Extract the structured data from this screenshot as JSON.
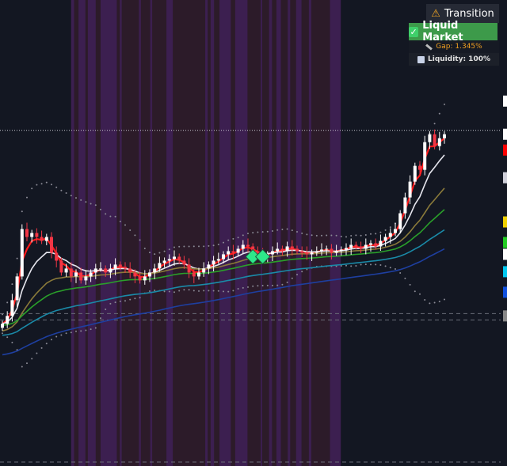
{
  "status_panel": {
    "transition_label": "Transition",
    "transition_icon": "warning-icon",
    "market_label": "Liquid Market",
    "market_icon": "checkmark-icon",
    "gap_label": "Gap: 1.345%",
    "liquidity_label": "Liquidity: 100%",
    "colors": {
      "transition_bg": "#262a35",
      "market_bg": "#3d9a4a",
      "gap_text": "#f0a020"
    }
  },
  "chart_data": {
    "type": "candlestick",
    "title": "",
    "ylim": [
      81,
      140
    ],
    "grid": false,
    "colors": {
      "up": "#ffffff",
      "down": "#f23645",
      "background": "#131722",
      "zone_dark": "#2c1b29",
      "zone_light": "#3c1f50"
    },
    "closes": [
      99,
      100,
      102,
      105,
      111,
      110,
      110.5,
      110,
      109.5,
      110,
      108,
      107,
      105.5,
      106,
      105,
      105.5,
      104.5,
      105,
      105.5,
      106,
      106,
      105.5,
      106,
      106.5,
      106.2,
      106,
      105.5,
      105,
      104.5,
      105,
      105.5,
      106,
      106.7,
      107,
      107.2,
      107.5,
      107,
      106.5,
      105.5,
      105,
      105.5,
      106,
      106.5,
      107,
      107.2,
      107.8,
      108.2,
      108,
      108.5,
      109,
      108.8,
      108.2,
      107.8,
      107.5,
      107.8,
      108.2,
      108.5,
      108.2,
      108.8,
      108.5,
      108.2,
      108,
      107.8,
      108,
      108.2,
      108.4,
      108.5,
      108,
      108.2,
      108.4,
      108.6,
      109,
      108.8,
      108.5,
      109,
      109.2,
      108.8,
      109.5,
      110,
      110.5,
      111,
      113,
      115,
      117,
      119,
      118.5,
      122,
      123,
      121.5,
      122.5,
      123
    ],
    "indicators": [
      {
        "type": "ema",
        "period": 3,
        "color": "#ff1a1a"
      },
      {
        "type": "ema",
        "period": 8,
        "color": "#e6e6ee",
        "seed": 99
      },
      {
        "type": "ema",
        "period": 20,
        "color": "#8a7a3a",
        "seed": 98
      },
      {
        "type": "ema",
        "period": 35,
        "color": "#2aa02a",
        "seed": 98.8
      },
      {
        "type": "ema",
        "period": 60,
        "color": "#1a8aa8",
        "seed": 97.5
      },
      {
        "type": "ema",
        "period": 90,
        "color": "#1e3fa0",
        "seed": 95
      }
    ],
    "bollinger": {
      "period": 20,
      "stddev": 2,
      "color": "#8a8a95"
    },
    "signals": [
      {
        "index": 51,
        "price": 107.5,
        "color": "#2ee88a"
      },
      {
        "index": 53,
        "price": 107.5,
        "color": "#2ee88a"
      }
    ],
    "last_price_line": 123.5,
    "levels": [
      100.3,
      99.5,
      81.5
    ],
    "zones_light": [
      [
        14,
        14.6
      ],
      [
        15.5,
        16.9
      ],
      [
        17.4,
        19
      ],
      [
        20,
        23.3
      ],
      [
        23.9,
        24.3
      ],
      [
        27.8,
        28.2
      ],
      [
        30.1,
        30.5
      ],
      [
        33.4,
        34.7
      ],
      [
        41.3,
        41.8
      ],
      [
        42.4,
        43.1
      ],
      [
        44.2,
        46.5
      ],
      [
        47.4,
        49.9
      ],
      [
        52.6,
        52.9
      ],
      [
        54.3,
        54.9
      ],
      [
        55.8,
        56.7
      ],
      [
        58.1,
        58.6
      ],
      [
        59.8,
        60.9
      ],
      [
        62.4,
        62.9
      ],
      [
        66.7,
        68.9
      ]
    ],
    "zone_range": [
      14,
      68.9
    ],
    "axis_markers": [
      {
        "price": 127.2,
        "color": "#ffffff"
      },
      {
        "price": 123,
        "color": "#ffffff"
      },
      {
        "price": 121,
        "color": "#ff0000"
      },
      {
        "price": 117.5,
        "color": "#d0d0da"
      },
      {
        "price": 111.9,
        "color": "#f0d000"
      },
      {
        "price": 109.3,
        "color": "#22cc22"
      },
      {
        "price": 107.8,
        "color": "#ffffff"
      },
      {
        "price": 105.6,
        "color": "#00c8f0"
      },
      {
        "price": 103,
        "color": "#1050e0"
      },
      {
        "price": 100,
        "color": "#888888"
      }
    ]
  }
}
